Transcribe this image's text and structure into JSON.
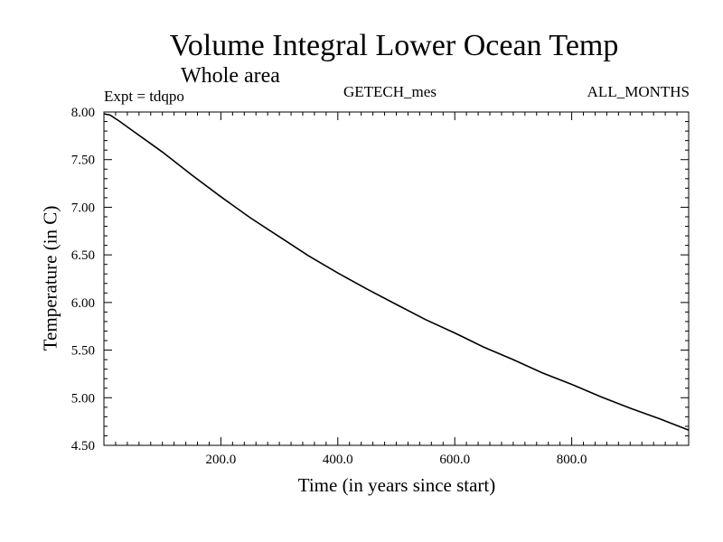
{
  "chart_data": {
    "type": "line",
    "title": "Volume Integral Lower Ocean Temp",
    "subtitle": "Whole area",
    "annotations": {
      "experiment": "Expt = tdqpo",
      "source": "GETECH_mes",
      "period": "ALL_MONTHS"
    },
    "xlabel": "Time (in years since start)",
    "ylabel": "Temperature (in C)",
    "xlim": [
      0,
      1000
    ],
    "ylim": [
      4.5,
      8.0
    ],
    "x_ticks": [
      200,
      400,
      600,
      800
    ],
    "x_tick_labels": [
      "200.0",
      "400.0",
      "600.0",
      "800.0"
    ],
    "y_ticks": [
      4.5,
      5.0,
      5.5,
      6.0,
      6.5,
      7.0,
      7.5,
      8.0
    ],
    "y_tick_labels": [
      "4.50",
      "5.00",
      "5.50",
      "6.00",
      "6.50",
      "7.00",
      "7.50",
      "8.00"
    ],
    "grid": false,
    "series": [
      {
        "x": [
          0,
          10,
          25,
          50,
          75,
          100,
          150,
          200,
          250,
          300,
          350,
          400,
          450,
          500,
          550,
          600,
          650,
          700,
          750,
          800,
          850,
          900,
          950,
          1000
        ],
        "y": [
          7.98,
          7.97,
          7.91,
          7.8,
          7.69,
          7.58,
          7.34,
          7.11,
          6.89,
          6.69,
          6.49,
          6.31,
          6.14,
          5.98,
          5.82,
          5.68,
          5.53,
          5.4,
          5.26,
          5.14,
          5.01,
          4.89,
          4.78,
          4.66
        ]
      }
    ]
  }
}
